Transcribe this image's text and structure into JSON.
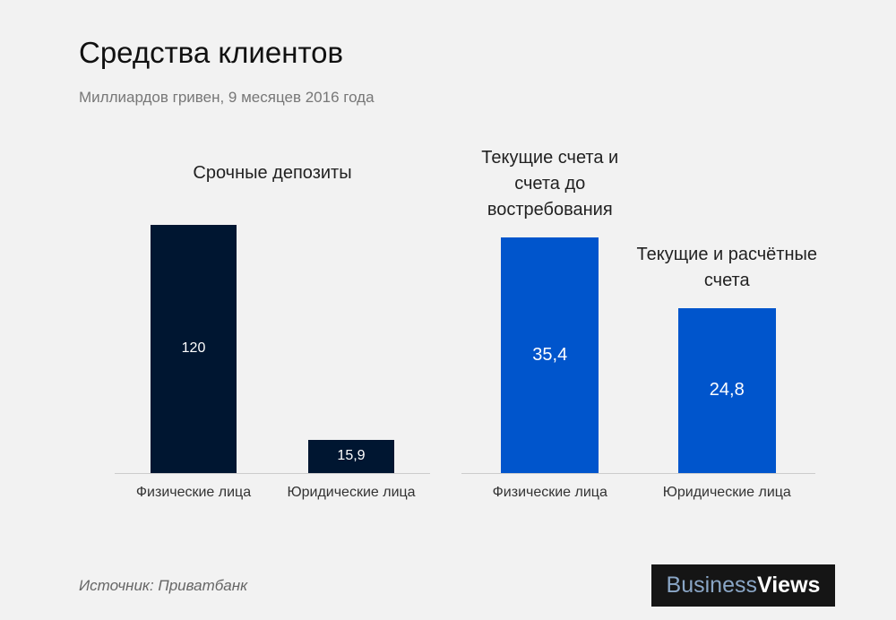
{
  "title": "Средства клиентов",
  "subtitle": "Миллиардов гривен, 9 месяцев 2016 года",
  "source": "Источник: Приватбанк",
  "logo": {
    "first": "Business",
    "second": "Views"
  },
  "chart_data": [
    {
      "type": "bar",
      "title": "Срочные депозиты",
      "categories": [
        "Физические лица",
        "Юридические лица"
      ],
      "values": [
        120,
        15.9
      ],
      "value_labels": [
        "120",
        "15,9"
      ],
      "color": "#001631"
    },
    {
      "type": "bar",
      "annotations": [
        "Текущие счета и счета до востребования",
        "Текущие и расчётные счета"
      ],
      "categories": [
        "Физические лица",
        "Юридические лица"
      ],
      "values": [
        35.4,
        24.8
      ],
      "value_labels": [
        "35,4",
        "24,8"
      ],
      "color": "#0055cc"
    }
  ]
}
